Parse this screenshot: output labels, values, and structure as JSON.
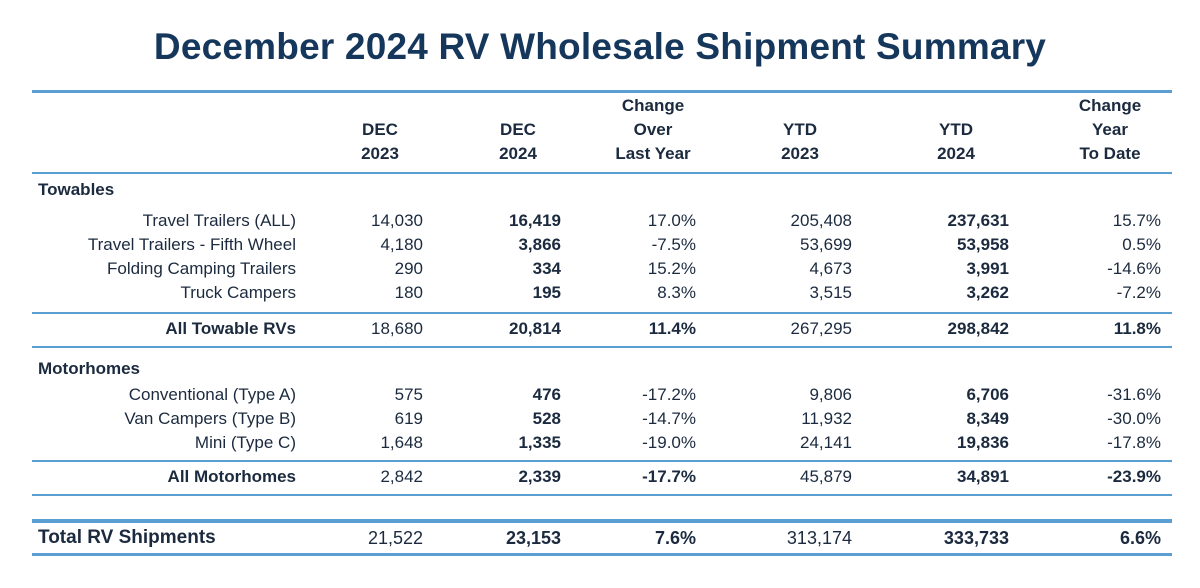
{
  "title": "December 2024 RV Wholesale Shipment Summary",
  "headers": {
    "dec2023": [
      "DEC",
      "2023"
    ],
    "dec2024": [
      "DEC",
      "2024"
    ],
    "change": [
      "Change",
      "Over",
      "Last Year"
    ],
    "ytd2023": [
      "YTD",
      "2023"
    ],
    "ytd2024": [
      "YTD",
      "2024"
    ],
    "changeYtd": [
      "Change",
      "Year",
      "To Date"
    ]
  },
  "towables": {
    "section": "Towables",
    "rows": [
      {
        "label": "Travel Trailers (ALL)",
        "dec2023": "14,030",
        "dec2024": "16,419",
        "change": "17.0%",
        "ytd2023": "205,408",
        "ytd2024": "237,631",
        "changeYtd": "15.7%"
      },
      {
        "label": "Travel Trailers - Fifth Wheel",
        "dec2023": "4,180",
        "dec2024": "3,866",
        "change": "-7.5%",
        "ytd2023": "53,699",
        "ytd2024": "53,958",
        "changeYtd": "0.5%"
      },
      {
        "label": "Folding Camping Trailers",
        "dec2023": "290",
        "dec2024": "334",
        "change": "15.2%",
        "ytd2023": "4,673",
        "ytd2024": "3,991",
        "changeYtd": "-14.6%"
      },
      {
        "label": "Truck Campers",
        "dec2023": "180",
        "dec2024": "195",
        "change": "8.3%",
        "ytd2023": "3,515",
        "ytd2024": "3,262",
        "changeYtd": "-7.2%"
      }
    ],
    "total": {
      "label": "All Towable RVs",
      "dec2023": "18,680",
      "dec2024": "20,814",
      "change": "11.4%",
      "ytd2023": "267,295",
      "ytd2024": "298,842",
      "changeYtd": "11.8%"
    }
  },
  "motorhomes": {
    "section": "Motorhomes",
    "rows": [
      {
        "label": "Conventional (Type A)",
        "dec2023": "575",
        "dec2024": "476",
        "change": "-17.2%",
        "ytd2023": "9,806",
        "ytd2024": "6,706",
        "changeYtd": "-31.6%"
      },
      {
        "label": "Van Campers (Type B)",
        "dec2023": "619",
        "dec2024": "528",
        "change": "-14.7%",
        "ytd2023": "11,932",
        "ytd2024": "8,349",
        "changeYtd": "-30.0%"
      },
      {
        "label": "Mini (Type C)",
        "dec2023": "1,648",
        "dec2024": "1,335",
        "change": "-19.0%",
        "ytd2023": "24,141",
        "ytd2024": "19,836",
        "changeYtd": "-17.8%"
      }
    ],
    "total": {
      "label": "All Motorhomes",
      "dec2023": "2,842",
      "dec2024": "2,339",
      "change": "-17.7%",
      "ytd2023": "45,879",
      "ytd2024": "34,891",
      "changeYtd": "-23.9%"
    }
  },
  "grandTotal": {
    "label": "Total RV Shipments",
    "dec2023": "21,522",
    "dec2024": "23,153",
    "change": "7.6%",
    "ytd2023": "313,174",
    "ytd2024": "333,733",
    "changeYtd": "6.6%"
  }
}
